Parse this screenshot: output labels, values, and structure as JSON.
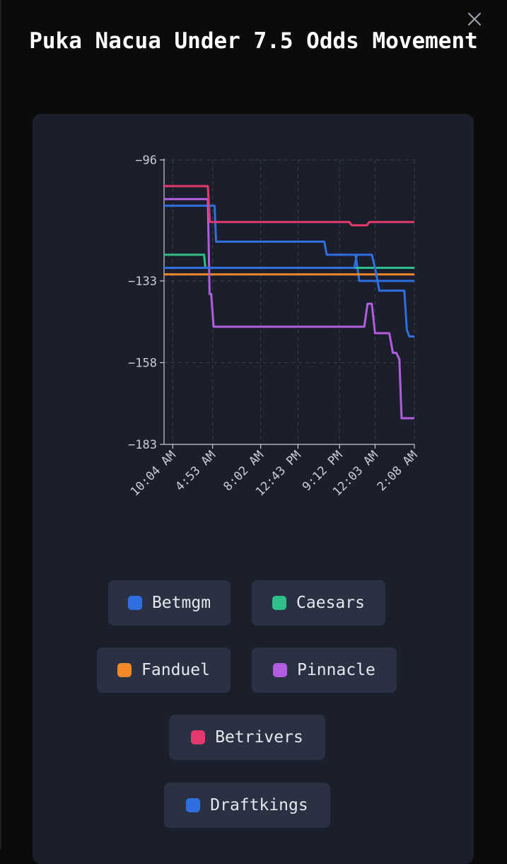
{
  "modal": {
    "close_icon": "close-icon"
  },
  "chart_data": {
    "type": "line",
    "title": "Puka Nacua Under 7.5 Odds Movement",
    "xlabel": "",
    "ylabel": "",
    "ylim": [
      -183,
      -96
    ],
    "yticks": [
      -96,
      -133,
      -158,
      -183
    ],
    "xticks": [
      "10:04 AM",
      "4:53 AM",
      "8:02 AM",
      "12:43 PM",
      "9:12 PM",
      "12:03 AM",
      "2:08 AM"
    ],
    "xlim": [
      0,
      100
    ],
    "xtick_positions": [
      3.5,
      19.4,
      38.6,
      53.5,
      70.1,
      84.3,
      100
    ],
    "grid": true,
    "legend_position": "bottom",
    "series": [
      {
        "name": "Betmgm",
        "color": "#2f6fe0",
        "points": [
          [
            0,
            -110
          ],
          [
            19.4,
            -110
          ],
          [
            20.2,
            -110
          ],
          [
            20.8,
            -121
          ],
          [
            24,
            -121
          ],
          [
            45,
            -121
          ],
          [
            46,
            -121
          ],
          [
            64,
            -121
          ],
          [
            65,
            -125
          ],
          [
            75.5,
            -125
          ],
          [
            76.5,
            -125
          ],
          [
            78,
            -133
          ],
          [
            84,
            -133
          ],
          [
            100,
            -133
          ]
        ]
      },
      {
        "name": "Caesars",
        "color": "#2fbf8a",
        "points": [
          [
            0,
            -125
          ],
          [
            16,
            -125
          ],
          [
            16.5,
            -129
          ],
          [
            82,
            -129
          ],
          [
            100,
            -129
          ],
          [
            100,
            -129
          ]
        ]
      },
      {
        "name": "Fanduel",
        "color": "#f0892a",
        "points": [
          [
            0,
            -131
          ],
          [
            100,
            -131
          ]
        ]
      },
      {
        "name": "Pinnacle",
        "color": "#b25de0",
        "points": [
          [
            0,
            -108
          ],
          [
            17.5,
            -108
          ],
          [
            18.2,
            -137
          ],
          [
            18.8,
            -137
          ],
          [
            19.8,
            -147
          ],
          [
            80,
            -147
          ],
          [
            81.3,
            -140
          ],
          [
            83,
            -140
          ],
          [
            84.3,
            -149
          ],
          [
            90,
            -149
          ],
          [
            91.4,
            -155
          ],
          [
            92.8,
            -155
          ],
          [
            94,
            -157
          ],
          [
            94.9,
            -175
          ],
          [
            100,
            -175
          ]
        ]
      },
      {
        "name": "Betrivers",
        "color": "#e23a6e",
        "points": [
          [
            0,
            -104
          ],
          [
            17.5,
            -104
          ],
          [
            18.3,
            -115
          ],
          [
            74,
            -115
          ],
          [
            75,
            -116
          ],
          [
            81,
            -116
          ],
          [
            82,
            -115
          ],
          [
            100,
            -115
          ]
        ]
      },
      {
        "name": "Draftkings",
        "color": "#2f6fe0",
        "points": [
          [
            0,
            -129
          ],
          [
            76,
            -129
          ],
          [
            77,
            -125
          ],
          [
            83,
            -125
          ],
          [
            84.3,
            -129
          ],
          [
            86,
            -136
          ],
          [
            96,
            -136
          ],
          [
            97,
            -148
          ],
          [
            98,
            -150
          ],
          [
            100,
            -150
          ]
        ]
      }
    ]
  },
  "legend": [
    {
      "label": "Betmgm",
      "color": "#2f6fe0"
    },
    {
      "label": "Caesars",
      "color": "#2fbf8a"
    },
    {
      "label": "Fanduel",
      "color": "#f0892a"
    },
    {
      "label": "Pinnacle",
      "color": "#b25de0"
    },
    {
      "label": "Betrivers",
      "color": "#e23a6e"
    },
    {
      "label": "Draftkings",
      "color": "#2f6fe0"
    }
  ]
}
